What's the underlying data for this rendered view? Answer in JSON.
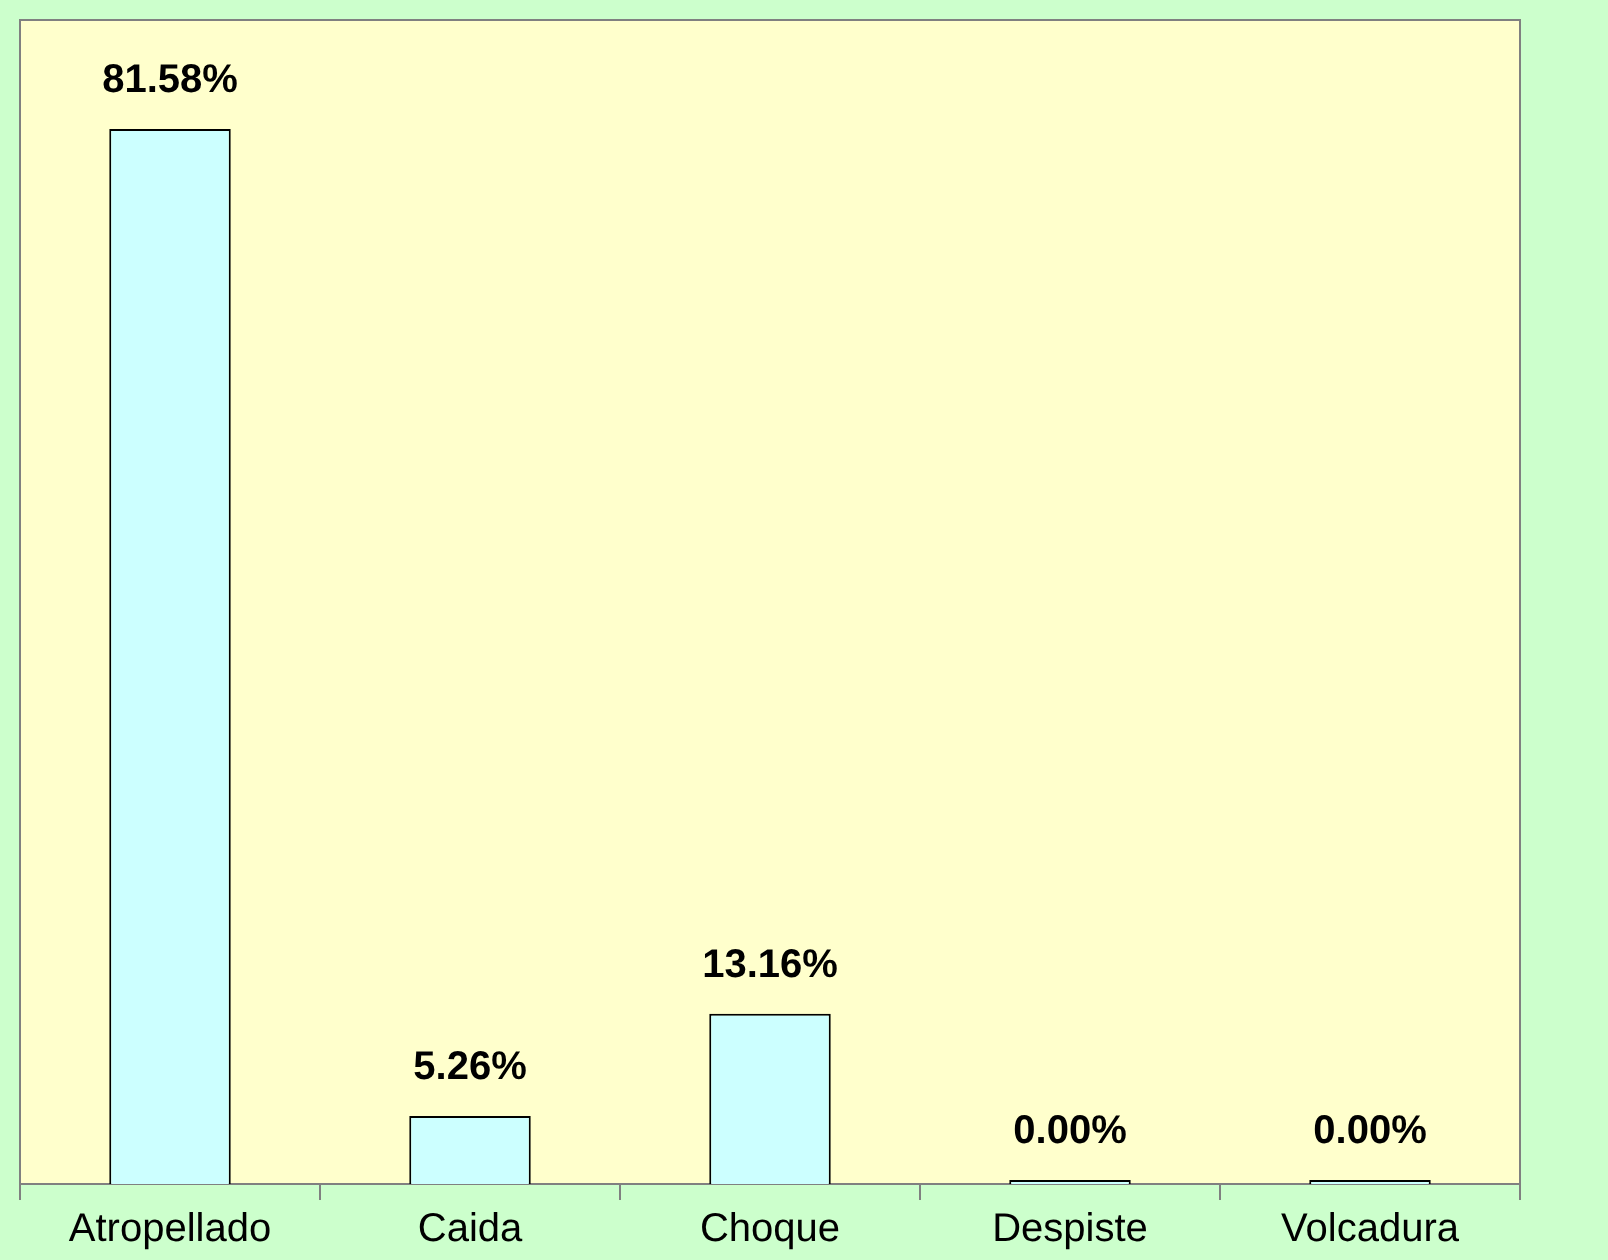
{
  "chart_data": {
    "type": "bar",
    "categories": [
      "Atropellado",
      "Caida",
      "Choque",
      "Despiste",
      "Volcadura"
    ],
    "values": [
      81.58,
      5.26,
      13.16,
      0.0,
      0.0
    ],
    "value_labels": [
      "81.58%",
      "5.26%",
      "13.16%",
      "0.00%",
      "0.00%"
    ],
    "color": "#ccffff",
    "grid": false,
    "legend": false
  }
}
